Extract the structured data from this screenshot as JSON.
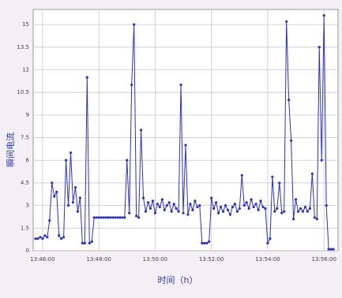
{
  "chart_data": {
    "type": "line",
    "x_label": "时间（h）",
    "y_label": "瞬间电流",
    "x": [
      "13:45:45",
      "13:45:50",
      "13:45:55",
      "13:46:00",
      "13:46:05",
      "13:46:10",
      "13:46:15",
      "13:46:20",
      "13:46:25",
      "13:46:30",
      "13:46:35",
      "13:46:40",
      "13:46:45",
      "13:46:50",
      "13:46:55",
      "13:47:00",
      "13:47:05",
      "13:47:10",
      "13:47:15",
      "13:47:20",
      "13:47:25",
      "13:47:30",
      "13:47:35",
      "13:47:40",
      "13:47:45",
      "13:47:50",
      "13:47:55",
      "13:48:00",
      "13:48:05",
      "13:48:10",
      "13:48:15",
      "13:48:20",
      "13:48:25",
      "13:48:30",
      "13:48:35",
      "13:48:40",
      "13:48:45",
      "13:48:50",
      "13:48:55",
      "13:49:00",
      "13:49:05",
      "13:49:10",
      "13:49:15",
      "13:49:20",
      "13:49:25",
      "13:49:30",
      "13:49:35",
      "13:49:40",
      "13:49:45",
      "13:49:50",
      "13:49:55",
      "13:50:00",
      "13:50:05",
      "13:50:10",
      "13:50:15",
      "13:50:20",
      "13:50:25",
      "13:50:30",
      "13:50:35",
      "13:50:40",
      "13:50:45",
      "13:50:50",
      "13:50:55",
      "13:51:00",
      "13:51:05",
      "13:51:10",
      "13:51:15",
      "13:51:20",
      "13:51:25",
      "13:51:30",
      "13:51:35",
      "13:51:40",
      "13:51:45",
      "13:51:50",
      "13:51:55",
      "13:52:00",
      "13:52:05",
      "13:52:10",
      "13:52:15",
      "13:52:20",
      "13:52:25",
      "13:52:30",
      "13:52:35",
      "13:52:40",
      "13:52:45",
      "13:52:50",
      "13:52:55",
      "13:53:00",
      "13:53:05",
      "13:53:10",
      "13:53:15",
      "13:53:20",
      "13:53:25",
      "13:53:30",
      "13:53:35",
      "13:53:40",
      "13:53:45",
      "13:53:50",
      "13:53:55",
      "13:54:00",
      "13:54:05",
      "13:54:10",
      "13:54:15",
      "13:54:20",
      "13:54:25",
      "13:54:30",
      "13:54:35",
      "13:54:40",
      "13:54:45",
      "13:54:50",
      "13:54:55",
      "13:55:00",
      "13:55:05",
      "13:55:10",
      "13:55:15",
      "13:55:20",
      "13:55:25",
      "13:55:30",
      "13:55:35",
      "13:55:40",
      "13:55:45",
      "13:55:50",
      "13:55:55",
      "13:56:00",
      "13:56:05",
      "13:56:10",
      "13:56:15",
      "13:56:20"
    ],
    "values": [
      0.8,
      0.8,
      0.9,
      0.8,
      1.0,
      0.9,
      2.0,
      4.5,
      3.6,
      3.9,
      1.0,
      0.8,
      0.9,
      6.0,
      3.0,
      6.5,
      3.2,
      4.2,
      2.6,
      3.5,
      0.5,
      0.5,
      11.5,
      0.5,
      0.6,
      2.2,
      2.2,
      2.2,
      2.2,
      2.2,
      2.2,
      2.2,
      2.2,
      2.2,
      2.2,
      2.2,
      2.2,
      2.2,
      2.2,
      6.0,
      2.5,
      11.0,
      15.0,
      2.3,
      2.2,
      8.0,
      3.5,
      2.6,
      3.2,
      2.8,
      3.3,
      2.5,
      3.1,
      2.9,
      3.4,
      2.7,
      3.0,
      3.2,
      2.6,
      3.1,
      2.8,
      2.6,
      11.0,
      2.5,
      7.0,
      2.4,
      3.1,
      2.7,
      3.3,
      2.9,
      3.0,
      0.5,
      0.5,
      0.5,
      0.6,
      3.5,
      2.8,
      3.2,
      2.5,
      2.9,
      2.6,
      3.0,
      2.7,
      2.4,
      2.9,
      3.1,
      2.6,
      2.8,
      5.0,
      3.0,
      3.2,
      2.8,
      3.4,
      2.9,
      3.1,
      2.7,
      3.3,
      2.9,
      2.8,
      0.5,
      0.8,
      4.9,
      2.6,
      2.8,
      4.5,
      2.5,
      2.6,
      15.2,
      10.0,
      7.3,
      2.1,
      3.4,
      2.6,
      2.8,
      2.6,
      2.9,
      2.6,
      2.8,
      5.1,
      2.2,
      2.1,
      13.5,
      6.0,
      15.6,
      3.0,
      0.1,
      0.1,
      0.1
    ],
    "color": "#2b2fd6",
    "xlim": [
      "13:45:40",
      "13:56:30"
    ],
    "xticks": [
      "13:46:00",
      "13:48:00",
      "13:50:00",
      "13:52:00",
      "13:54:00",
      "13:56:00"
    ],
    "ylim": [
      0,
      16
    ],
    "yticks": [
      0,
      1.5,
      3,
      4.5,
      6,
      7.5,
      9,
      10.5,
      12,
      13.5,
      15
    ],
    "grid": true
  }
}
